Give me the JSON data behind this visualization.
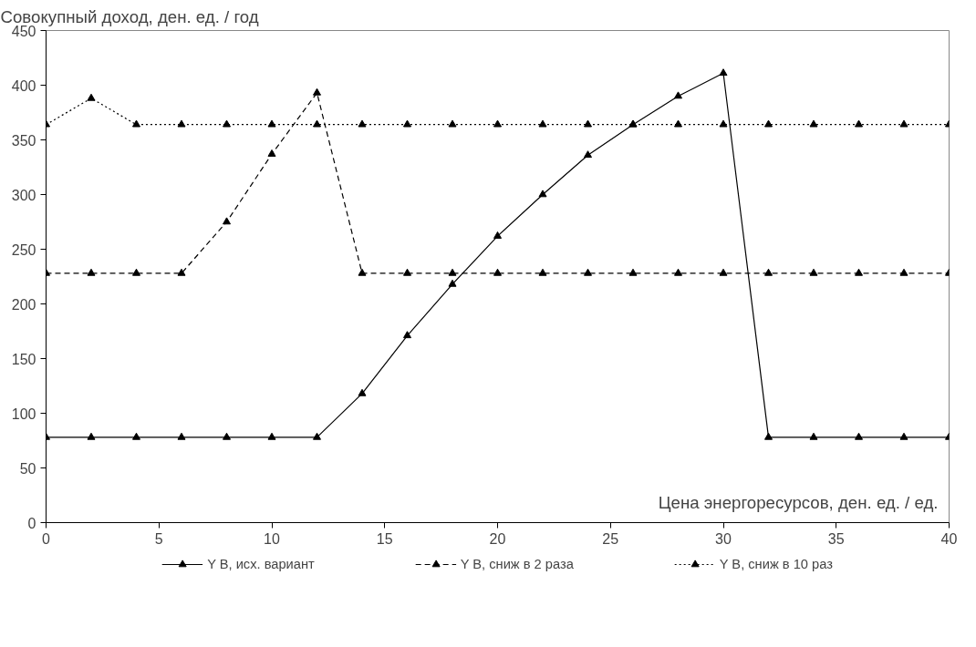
{
  "chart_data": {
    "type": "line",
    "xlabel": "Цена энергоресурсов, ден. ед. / ед.",
    "ylabel": "Совокупный доход, ден. ед. / год",
    "x": [
      0,
      2,
      4,
      6,
      8,
      10,
      12,
      14,
      16,
      18,
      20,
      22,
      24,
      26,
      28,
      30,
      32,
      34,
      36,
      38,
      40
    ],
    "xlim": [
      0,
      40
    ],
    "xticks": [
      0,
      5,
      10,
      15,
      20,
      25,
      30,
      35,
      40
    ],
    "ylim": [
      0,
      450
    ],
    "yticks": [
      0,
      50,
      100,
      150,
      200,
      250,
      300,
      350,
      400,
      450
    ],
    "grid": false,
    "legend": "bottom",
    "marker": "triangle",
    "series": [
      {
        "name": "Y В, исх. вариант",
        "color": "#000000",
        "line_style": "solid",
        "values": [
          78,
          78,
          78,
          78,
          78,
          78,
          78,
          118,
          171,
          218,
          262,
          300,
          336,
          364,
          390,
          411,
          78,
          78,
          78,
          78,
          78
        ]
      },
      {
        "name": "Y В, сниж в 2 раза",
        "color": "#000000",
        "line_style": "dashed",
        "values": [
          228,
          228,
          228,
          228,
          275,
          337,
          393,
          228,
          228,
          228,
          228,
          228,
          228,
          228,
          228,
          228,
          228,
          228,
          228,
          228,
          228
        ]
      },
      {
        "name": "Y В, сниж в 10 раз",
        "color": "#000000",
        "line_style": "dotted",
        "values": [
          364,
          388,
          364,
          364,
          364,
          364,
          364,
          364,
          364,
          364,
          364,
          364,
          364,
          364,
          364,
          364,
          364,
          364,
          364,
          364,
          364
        ]
      }
    ]
  }
}
